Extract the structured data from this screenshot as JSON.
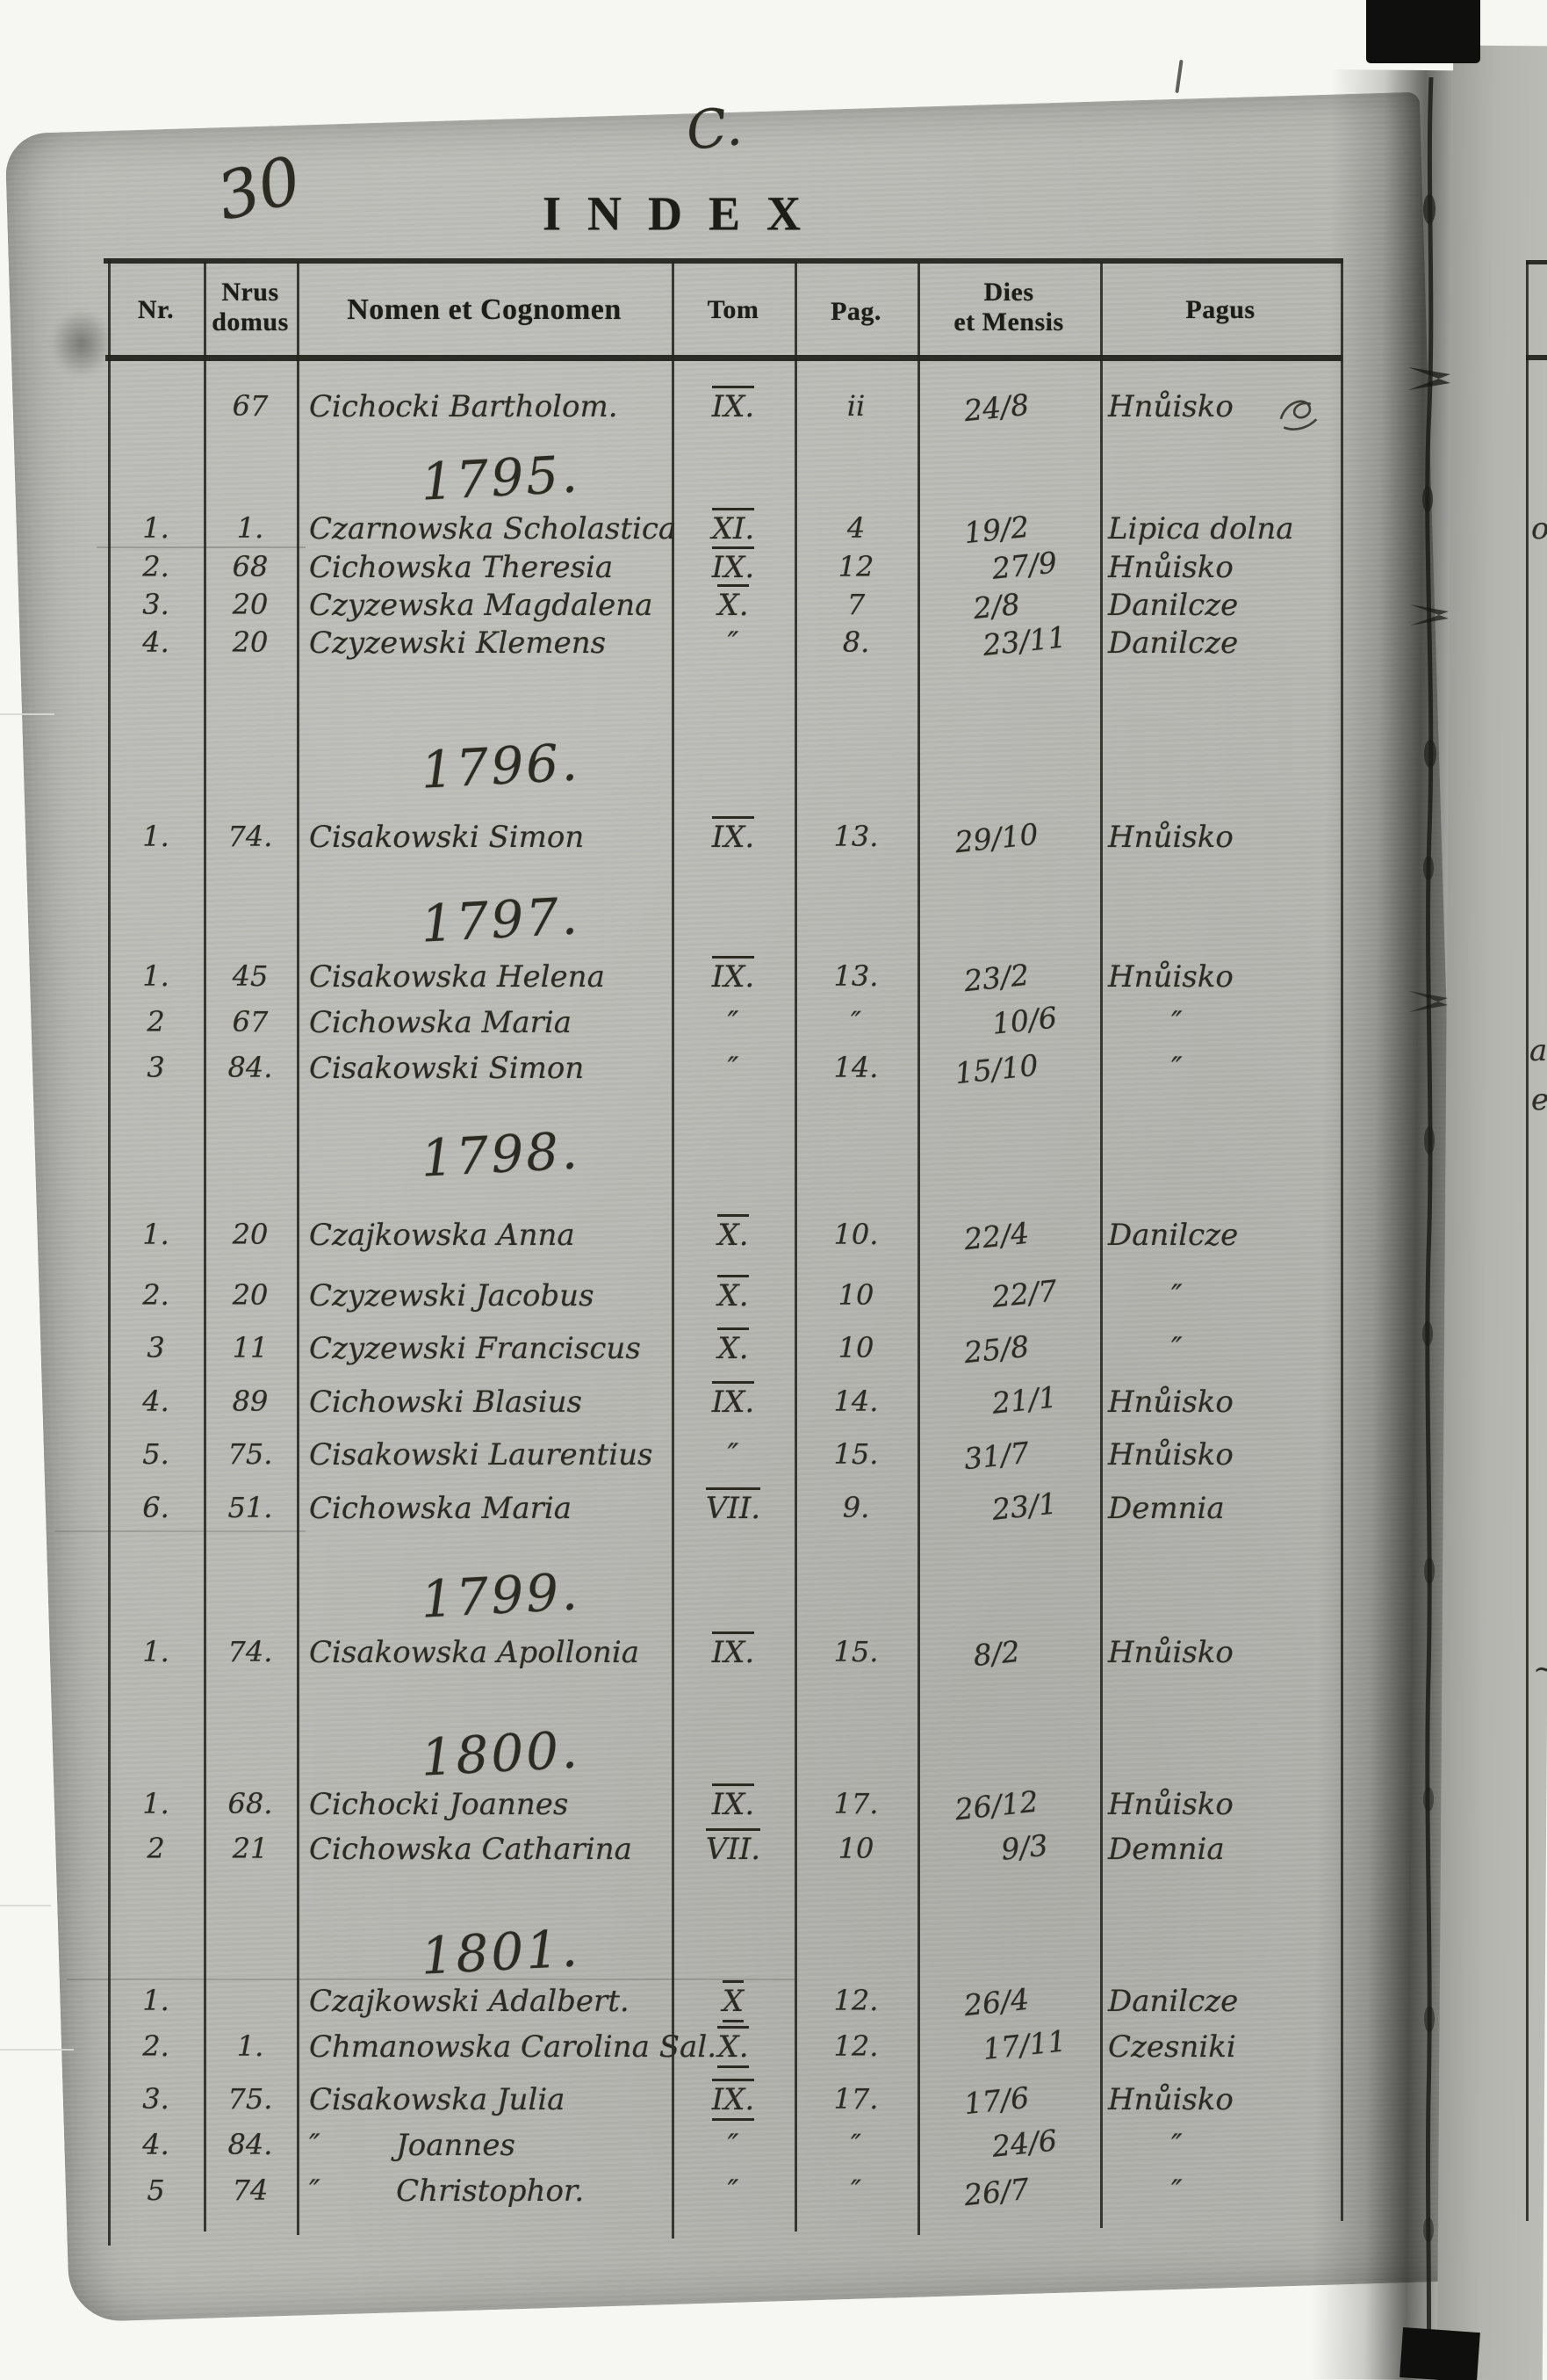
{
  "page": {
    "corner_number": "30",
    "section_letter": "C.",
    "title": "INDEX"
  },
  "colors": {
    "paper": "#b8b8b3",
    "ink": "#2b2b23",
    "printed_ink": "#1d1d17",
    "binding_black": "#0f0f0d",
    "scan_white": "#f6f6f3"
  },
  "table": {
    "headers": {
      "nr": "Nr.",
      "domus_line1": "Nrus",
      "domus_line2": "domus",
      "name": "Nomen et Cognomen",
      "tom": "Tom",
      "pag": "Pag.",
      "dies_line1": "Dies",
      "dies_line2": "et Mensis",
      "pagus": "Pagus"
    },
    "sections": [
      {
        "year": "",
        "rows": [
          {
            "nr": "",
            "domus": "67",
            "name": "Cichocki Bartholom.",
            "tom": "IX.",
            "tm": "over",
            "pag": "ii",
            "dies": "24/8",
            "pagus": "Hnůisko",
            "doodle": true
          }
        ]
      },
      {
        "year": "1795.",
        "rows": [
          {
            "nr": "1.",
            "domus": "1.",
            "name": "Czarnowska Scholastica",
            "tom": "XI.",
            "tm": "over",
            "pag": "4",
            "dies": "19/2",
            "pagus": "Lipica dolna"
          },
          {
            "nr": "2.",
            "domus": "68",
            "name": "Cichowska Theresia",
            "tom": "IX.",
            "tm": "over",
            "pag": "12",
            "dies": "27/9",
            "pagus": "Hnůisko"
          },
          {
            "nr": "3.",
            "domus": "20",
            "name": "Czyzewska Magdalena",
            "tom": "X.",
            "tm": "over",
            "pag": "7",
            "dies": "2/8",
            "pagus": "Danilcze"
          },
          {
            "nr": "4.",
            "domus": "20",
            "name": "Czyzewski Klemens",
            "tom": "″",
            "tm": "",
            "pag": "8.",
            "dies": "23/11",
            "pagus": "Danilcze"
          }
        ]
      },
      {
        "year": "1796.",
        "rows": [
          {
            "nr": "1.",
            "domus": "74.",
            "name": "Cisakowski Simon",
            "tom": "IX.",
            "tm": "over",
            "pag": "13.",
            "dies": "29/10",
            "pagus": "Hnůisko"
          }
        ]
      },
      {
        "year": "1797.",
        "rows": [
          {
            "nr": "1.",
            "domus": "45",
            "name": "Cisakowska Helena",
            "tom": "IX.",
            "tm": "over",
            "pag": "13.",
            "dies": "23/2",
            "pagus": "Hnůisko"
          },
          {
            "nr": "2",
            "domus": "67",
            "name": "Cichowska Maria",
            "tom": "″",
            "tm": "",
            "pag": "″",
            "dies": "10/6",
            "pagus": "″"
          },
          {
            "nr": "3",
            "domus": "84.",
            "name": "Cisakowski Simon",
            "tom": "″",
            "tm": "",
            "pag": "14.",
            "dies": "15/10",
            "pagus": "″"
          }
        ]
      },
      {
        "year": "1798.",
        "rows": [
          {
            "nr": "1.",
            "domus": "20",
            "name": "Czajkowska Anna",
            "tom": "X.",
            "tm": "over",
            "pag": "10.",
            "dies": "22/4",
            "pagus": "Danilcze"
          },
          {
            "nr": "2.",
            "domus": "20",
            "name": "Czyzewski Jacobus",
            "tom": "X.",
            "tm": "over",
            "pag": "10",
            "dies": "22/7",
            "pagus": "″"
          },
          {
            "nr": "3",
            "domus": "11",
            "name": "Czyzewski Franciscus",
            "tom": "X.",
            "tm": "over",
            "pag": "10",
            "dies": "25/8",
            "pagus": "″"
          },
          {
            "nr": "4.",
            "domus": "89",
            "name": "Cichowski Blasius",
            "tom": "IX.",
            "tm": "over",
            "pag": "14.",
            "dies": "21/1",
            "pagus": "Hnůisko"
          },
          {
            "nr": "5.",
            "domus": "75.",
            "name": "Cisakowski Laurentius",
            "tom": "″",
            "tm": "",
            "pag": "15.",
            "dies": "31/7",
            "pagus": "Hnůisko"
          },
          {
            "nr": "6.",
            "domus": "51.",
            "name": "Cichowska Maria",
            "tom": "VII.",
            "tm": "over",
            "pag": "9.",
            "dies": "23/1",
            "pagus": "Demnia"
          }
        ]
      },
      {
        "year": "1799.",
        "rows": [
          {
            "nr": "1.",
            "domus": "74.",
            "name": "Cisakowska Apollonia",
            "tom": "IX.",
            "tm": "over",
            "pag": "15.",
            "dies": "8/2",
            "pagus": "Hnůisko"
          }
        ]
      },
      {
        "year": "1800.",
        "rows": [
          {
            "nr": "1.",
            "domus": "68.",
            "name": "Cichocki Joannes",
            "tom": "IX.",
            "tm": "over",
            "pag": "17.",
            "dies": "26/12",
            "pagus": "Hnůisko"
          },
          {
            "nr": "2",
            "domus": "21",
            "name": "Cichowska Catharina",
            "tom": "VII.",
            "tm": "over",
            "pag": "10",
            "dies": "9/3",
            "pagus": "Demnia"
          }
        ]
      },
      {
        "year": "1801.",
        "rows": [
          {
            "nr": "1.",
            "domus": "",
            "name": "Czajkowski Adalbert.",
            "tom": "X",
            "tm": "over-under",
            "pag": "12.",
            "dies": "26/4",
            "pagus": "Danilcze"
          },
          {
            "nr": "2.",
            "domus": "1.",
            "name": "Chmanowska Carolina Sal.",
            "tom": "X.",
            "tm": "over-under",
            "pag": "12.",
            "dies": "17/11",
            "pagus": "Czesniki"
          },
          {
            "nr": "3.",
            "domus": "75.",
            "name": "Cisakowska Julia",
            "tom": "IX.",
            "tm": "over-under",
            "pag": "17.",
            "dies": "17/6",
            "pagus": "Hnůisko"
          },
          {
            "nr": "4.",
            "domus": "84.",
            "name": "″        Joannes",
            "tom": "″",
            "tm": "",
            "pag": "″",
            "dies": "24/6",
            "pagus": "″"
          },
          {
            "nr": "5",
            "domus": "74",
            "name": "″        Christophor.",
            "tom": "″",
            "tm": "",
            "pag": "″",
            "dies": "26/7",
            "pagus": "″"
          }
        ]
      }
    ]
  }
}
